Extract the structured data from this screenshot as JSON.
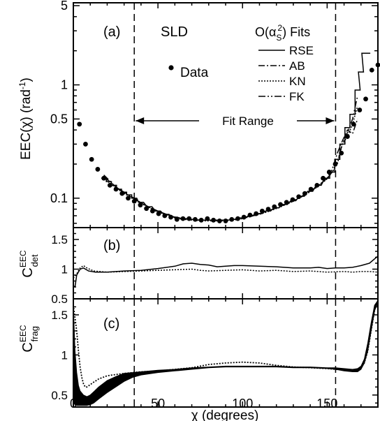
{
  "figure": {
    "xlabel": "χ (degrees)",
    "x_ticks": [
      "0",
      "50",
      "100",
      "150"
    ]
  },
  "chart_data": [
    {
      "type": "scatter",
      "panel_label": "(a)",
      "experiment": "SLD",
      "legend_title": "O(α_S^2) Fits",
      "legend_title_parts": {
        "main": "O(α",
        "sub": "S",
        "sup": "2",
        "tail": ") Fits"
      },
      "ylabel": "EEC(χ)  (rad⁻¹)",
      "ylabel_parts": {
        "main": "EEC(χ)  (rad",
        "sup": "-1",
        "tail": ")"
      },
      "yscale": "log",
      "xlim": [
        0,
        180
      ],
      "ylim": [
        0.055,
        5.3
      ],
      "y_ticks": [
        {
          "v": 0.1,
          "label": "0.1"
        },
        {
          "v": 0.5,
          "label": "0.5"
        },
        {
          "v": 1,
          "label": "1"
        },
        {
          "v": 5,
          "label": "5"
        }
      ],
      "annotation": {
        "text": "Fit Range",
        "x_from": 36,
        "x_to": 155
      },
      "fit_range_lines": [
        36,
        155
      ],
      "data_label": "Data",
      "data": {
        "name": "Data",
        "x": [
          3.6,
          7.2,
          10.8,
          14.4,
          18,
          21.6,
          25.2,
          28.8,
          32.4,
          36,
          39.6,
          43.2,
          46.8,
          50.4,
          54,
          57.6,
          61.2,
          64.8,
          68.4,
          72,
          75.6,
          79.2,
          82.8,
          86.4,
          90,
          93.6,
          97.2,
          100.8,
          104.4,
          108,
          111.6,
          115.2,
          118.8,
          122.4,
          126,
          129.6,
          133.2,
          136.8,
          140.4,
          144,
          147.6,
          151.2,
          154.8,
          158.4,
          162,
          165.6,
          169.2,
          172.8,
          176.4,
          180
        ],
        "y": [
          0.45,
          0.3,
          0.22,
          0.18,
          0.15,
          0.13,
          0.12,
          0.11,
          0.1,
          0.094,
          0.087,
          0.081,
          0.077,
          0.073,
          0.07,
          0.068,
          0.065,
          0.066,
          0.066,
          0.065,
          0.064,
          0.066,
          0.064,
          0.063,
          0.063,
          0.065,
          0.066,
          0.068,
          0.071,
          0.073,
          0.077,
          0.08,
          0.084,
          0.088,
          0.092,
          0.097,
          0.103,
          0.11,
          0.12,
          0.13,
          0.15,
          0.17,
          0.2,
          0.25,
          0.35,
          0.45,
          0.6,
          0.75,
          1.35,
          1.5
        ]
      },
      "fits": [
        {
          "name": "RSE",
          "style": "solid",
          "x": [
            18,
            21,
            24,
            27,
            30,
            33,
            36,
            40,
            45,
            50,
            55,
            60,
            65,
            70,
            75,
            80,
            85,
            90,
            95,
            100,
            105,
            110,
            115,
            120,
            125,
            130,
            135,
            140,
            145,
            150,
            153,
            156,
            159,
            162,
            165,
            168,
            170,
            172,
            174
          ],
          "y": [
            0.15,
            0.14,
            0.13,
            0.12,
            0.113,
            0.107,
            0.1,
            0.092,
            0.084,
            0.077,
            0.072,
            0.068,
            0.066,
            0.065,
            0.064,
            0.064,
            0.064,
            0.064,
            0.065,
            0.067,
            0.07,
            0.073,
            0.077,
            0.082,
            0.088,
            0.095,
            0.104,
            0.115,
            0.13,
            0.15,
            0.17,
            0.22,
            0.3,
            0.42,
            0.55,
            0.9,
            1.3,
            1.9,
            1.9
          ]
        },
        {
          "name": "AB",
          "style": "dashdot",
          "x": [
            18,
            21,
            24,
            27,
            30,
            33,
            36,
            40,
            45,
            50,
            55,
            60,
            65,
            70,
            75,
            80,
            85,
            90,
            95,
            100,
            105,
            110,
            115,
            120,
            125,
            130,
            135,
            140,
            145,
            150,
            153,
            156,
            159,
            162,
            165,
            168
          ],
          "y": [
            0.16,
            0.145,
            0.13,
            0.12,
            0.113,
            0.106,
            0.1,
            0.091,
            0.083,
            0.077,
            0.072,
            0.068,
            0.066,
            0.065,
            0.064,
            0.064,
            0.064,
            0.064,
            0.065,
            0.067,
            0.07,
            0.073,
            0.077,
            0.082,
            0.088,
            0.095,
            0.104,
            0.115,
            0.13,
            0.15,
            0.18,
            0.25,
            0.32,
            0.4,
            0.37,
            0.5
          ]
        },
        {
          "name": "KN",
          "style": "dotted",
          "x": [
            18,
            21,
            24,
            27,
            30,
            33,
            36,
            40,
            45,
            50,
            55,
            60,
            65,
            70,
            75,
            80,
            85,
            90,
            95,
            100,
            105,
            110,
            115,
            120,
            125,
            130,
            135,
            140,
            145,
            150,
            153,
            156,
            159,
            162,
            165,
            168
          ],
          "y": [
            0.15,
            0.138,
            0.127,
            0.118,
            0.11,
            0.104,
            0.098,
            0.09,
            0.082,
            0.076,
            0.071,
            0.067,
            0.065,
            0.064,
            0.063,
            0.063,
            0.063,
            0.063,
            0.064,
            0.066,
            0.069,
            0.072,
            0.076,
            0.081,
            0.087,
            0.094,
            0.103,
            0.114,
            0.128,
            0.148,
            0.17,
            0.2,
            0.3,
            0.35,
            0.45,
            0.65
          ]
        },
        {
          "name": "FK",
          "style": "dashdotdot",
          "x": [
            18,
            21,
            24,
            27,
            30,
            33,
            36,
            40,
            45,
            50,
            55,
            60,
            65,
            70,
            75,
            80,
            85,
            90,
            95,
            100,
            105,
            110,
            115,
            120,
            125,
            130,
            135,
            140,
            145,
            150,
            153,
            156,
            159,
            162,
            165,
            168
          ],
          "y": [
            0.155,
            0.142,
            0.13,
            0.12,
            0.112,
            0.105,
            0.099,
            0.091,
            0.083,
            0.077,
            0.072,
            0.068,
            0.066,
            0.065,
            0.064,
            0.064,
            0.064,
            0.064,
            0.065,
            0.067,
            0.07,
            0.073,
            0.077,
            0.082,
            0.088,
            0.095,
            0.104,
            0.115,
            0.13,
            0.15,
            0.17,
            0.21,
            0.3,
            0.38,
            0.5,
            0.8
          ]
        }
      ]
    },
    {
      "type": "line",
      "panel_label": "(b)",
      "ylabel_parts": {
        "main": "C",
        "sup": "EEC",
        "sub": "det"
      },
      "ylim": [
        0.5,
        1.7
      ],
      "y_ticks": [
        {
          "v": 1.5,
          "label": "1.5"
        },
        {
          "v": 1.0,
          "label": "1"
        },
        {
          "v": 0.5,
          "label": "0.5"
        }
      ],
      "series": [
        {
          "style": "solid",
          "x": [
            0,
            1,
            2,
            4,
            6,
            9,
            13,
            20,
            30,
            40,
            50,
            60,
            65,
            70,
            75,
            80,
            85,
            90,
            95,
            100,
            110,
            120,
            130,
            140,
            145,
            150,
            155,
            160,
            165,
            170,
            175,
            180
          ],
          "y": [
            0.72,
            0.7,
            0.9,
            1.0,
            1.02,
            0.97,
            0.95,
            0.95,
            0.97,
            0.98,
            1.01,
            1.05,
            1.09,
            1.1,
            1.08,
            1.07,
            1.04,
            1.05,
            1.06,
            1.06,
            1.05,
            1.04,
            1.02,
            1.02,
            1.03,
            1.01,
            1.02,
            1.02,
            1.03,
            1.06,
            1.1,
            1.22
          ]
        },
        {
          "style": "dotted",
          "x": [
            0,
            2,
            4,
            6,
            8,
            12,
            20,
            30,
            40,
            50,
            60,
            70,
            75,
            80,
            90,
            100,
            110,
            120,
            130,
            140,
            150,
            160,
            165,
            170,
            175,
            180
          ],
          "y": [
            0.85,
            0.92,
            1.02,
            1.06,
            1.02,
            0.97,
            0.95,
            0.96,
            0.97,
            0.98,
            0.99,
            1.0,
            0.98,
            0.97,
            0.98,
            0.99,
            0.97,
            0.98,
            0.96,
            0.97,
            0.95,
            0.96,
            0.95,
            0.96,
            0.96,
            0.95
          ]
        }
      ]
    },
    {
      "type": "line",
      "panel_label": "(c)",
      "ylabel_parts": {
        "main": "C",
        "sup": "EEC",
        "sub": "frag"
      },
      "ylim": [
        0.35,
        1.7
      ],
      "y_ticks": [
        {
          "v": 1.5,
          "label": "1.5"
        },
        {
          "v": 1.0,
          "label": "1"
        },
        {
          "v": 0.5,
          "label": "0.5"
        }
      ],
      "band": {
        "x": [
          0,
          1,
          2,
          3,
          4,
          6,
          8,
          10,
          12,
          15,
          20,
          25,
          30,
          35,
          40,
          50,
          60,
          70,
          80,
          90,
          100,
          110,
          120,
          130,
          140,
          150,
          155,
          160,
          165,
          168,
          170,
          172,
          174,
          176,
          178,
          180
        ],
        "upper": [
          1.62,
          1.05,
          0.78,
          0.62,
          0.55,
          0.5,
          0.48,
          0.5,
          0.54,
          0.6,
          0.68,
          0.73,
          0.77,
          0.78,
          0.79,
          0.81,
          0.82,
          0.84,
          0.85,
          0.86,
          0.86,
          0.86,
          0.86,
          0.85,
          0.85,
          0.84,
          0.84,
          0.83,
          0.82,
          0.83,
          0.86,
          0.95,
          1.15,
          1.4,
          1.62,
          1.68
        ],
        "lower": [
          0.4,
          0.38,
          0.37,
          0.37,
          0.37,
          0.37,
          0.37,
          0.38,
          0.4,
          0.45,
          0.53,
          0.6,
          0.67,
          0.72,
          0.75,
          0.78,
          0.8,
          0.82,
          0.84,
          0.85,
          0.85,
          0.85,
          0.85,
          0.84,
          0.84,
          0.83,
          0.82,
          0.8,
          0.79,
          0.79,
          0.82,
          0.9,
          1.05,
          1.3,
          1.55,
          1.65
        ]
      },
      "series": [
        {
          "style": "dotted",
          "x": [
            0,
            2,
            3,
            4,
            5,
            6,
            7,
            8,
            10,
            12,
            15,
            20,
            30,
            40,
            50,
            60,
            70,
            80,
            90,
            100,
            110,
            120,
            130,
            140,
            150,
            155,
            160,
            165,
            168,
            170,
            172,
            174,
            176,
            178
          ],
          "y": [
            1.62,
            1.3,
            1.05,
            0.85,
            0.72,
            0.64,
            0.6,
            0.6,
            0.63,
            0.66,
            0.7,
            0.74,
            0.77,
            0.79,
            0.8,
            0.82,
            0.84,
            0.88,
            0.9,
            0.91,
            0.9,
            0.87,
            0.85,
            0.84,
            0.83,
            0.82,
            0.81,
            0.8,
            0.81,
            0.84,
            0.9,
            1.05,
            1.3,
            1.55
          ]
        }
      ]
    }
  ]
}
